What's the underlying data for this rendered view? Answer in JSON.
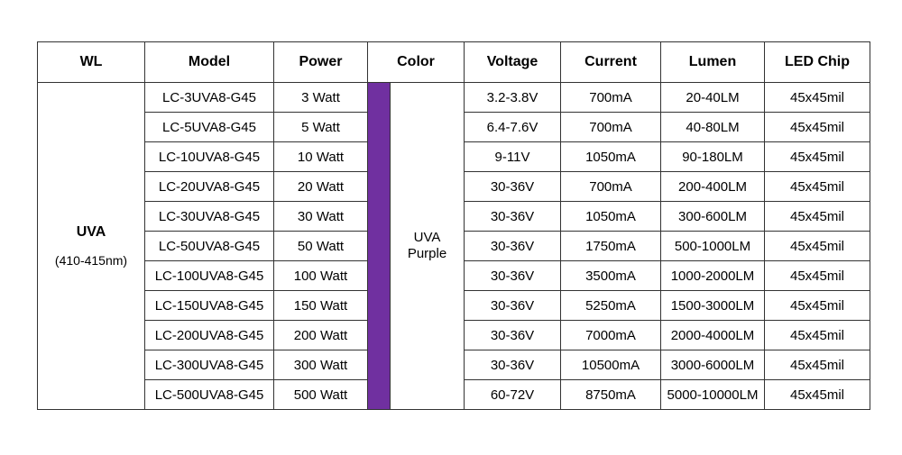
{
  "headers": [
    "WL",
    "Model",
    "Power",
    "Color",
    "Voltage",
    "Current",
    "Lumen",
    "LED Chip"
  ],
  "wl": {
    "name": "UVA",
    "range": "(410-415nm)"
  },
  "color": {
    "line1": "UVA",
    "line2": "Purple",
    "swatch_hex": "#7030a0"
  },
  "rows": [
    {
      "model": "LC-3UVA8-G45",
      "power": "3 Watt",
      "voltage": "3.2-3.8V",
      "current": "700mA",
      "lumen": "20-40LM",
      "chip": "45x45mil"
    },
    {
      "model": "LC-5UVA8-G45",
      "power": "5 Watt",
      "voltage": "6.4-7.6V",
      "current": "700mA",
      "lumen": "40-80LM",
      "chip": "45x45mil"
    },
    {
      "model": "LC-10UVA8-G45",
      "power": "10 Watt",
      "voltage": "9-11V",
      "current": "1050mA",
      "lumen": "90-180LM",
      "chip": "45x45mil"
    },
    {
      "model": "LC-20UVA8-G45",
      "power": "20 Watt",
      "voltage": "30-36V",
      "current": "700mA",
      "lumen": "200-400LM",
      "chip": "45x45mil"
    },
    {
      "model": "LC-30UVA8-G45",
      "power": "30 Watt",
      "voltage": "30-36V",
      "current": "1050mA",
      "lumen": "300-600LM",
      "chip": "45x45mil"
    },
    {
      "model": "LC-50UVA8-G45",
      "power": "50 Watt",
      "voltage": "30-36V",
      "current": "1750mA",
      "lumen": "500-1000LM",
      "chip": "45x45mil"
    },
    {
      "model": "LC-100UVA8-G45",
      "power": "100 Watt",
      "voltage": "30-36V",
      "current": "3500mA",
      "lumen": "1000-2000LM",
      "chip": "45x45mil"
    },
    {
      "model": "LC-150UVA8-G45",
      "power": "150 Watt",
      "voltage": "30-36V",
      "current": "5250mA",
      "lumen": "1500-3000LM",
      "chip": "45x45mil"
    },
    {
      "model": "LC-200UVA8-G45",
      "power": "200 Watt",
      "voltage": "30-36V",
      "current": "7000mA",
      "lumen": "2000-4000LM",
      "chip": "45x45mil"
    },
    {
      "model": "LC-300UVA8-G45",
      "power": "300 Watt",
      "voltage": "30-36V",
      "current": "10500mA",
      "lumen": "3000-6000LM",
      "chip": "45x45mil"
    },
    {
      "model": "LC-500UVA8-G45",
      "power": "500 Watt",
      "voltage": "60-72V",
      "current": "8750mA",
      "lumen": "5000-10000LM",
      "chip": "45x45mil"
    }
  ]
}
